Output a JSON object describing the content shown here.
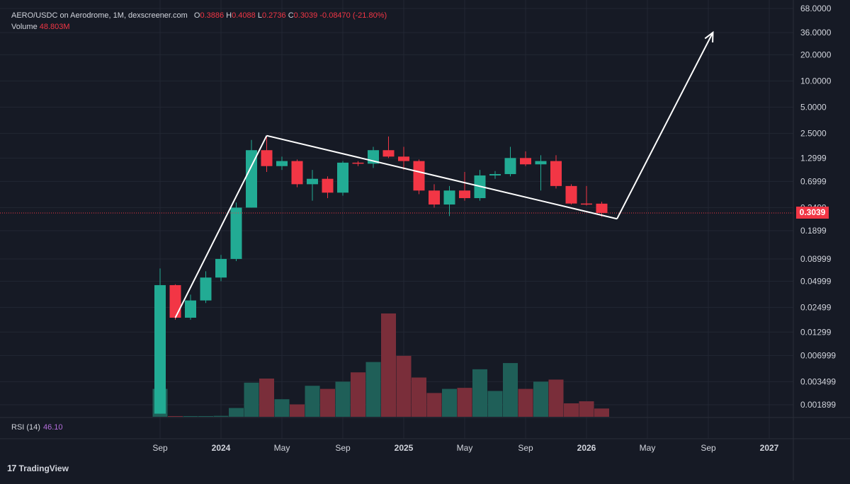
{
  "header": {
    "symbol": "AERO/USDC on Aerodrome, 1M, dexscreener.com",
    "open_label": "O",
    "open": "0.3886",
    "high_label": "H",
    "high": "0.4088",
    "low_label": "L",
    "low": "0.2736",
    "close_label": "C",
    "close": "0.3039",
    "change": "-0.08470 (-21.80%)"
  },
  "volume": {
    "label": "Volume",
    "value": "48.803M"
  },
  "rsi": {
    "label": "RSI (14)",
    "value": "46.10"
  },
  "last_price": "0.3039",
  "footer": {
    "brand": "TradingView",
    "logo": "17"
  },
  "colors": {
    "up": "#22ab94",
    "down": "#f23645",
    "vol_up": "#1f5f58",
    "vol_down": "#7a2e3a",
    "bg": "#161a25",
    "grid": "#222733"
  },
  "chart_data": {
    "type": "candlestick",
    "title": "AERO/USDC on Aerodrome, 1M",
    "yscale": "log",
    "ylim": [
      0.0014,
      68
    ],
    "y_ticks": [
      {
        "label": "68.0000",
        "v": 68
      },
      {
        "label": "36.0000",
        "v": 36
      },
      {
        "label": "20.0000",
        "v": 20
      },
      {
        "label": "10.0000",
        "v": 10
      },
      {
        "label": "5.0000",
        "v": 5
      },
      {
        "label": "2.5000",
        "v": 2.5
      },
      {
        "label": "1.2999",
        "v": 1.2999
      },
      {
        "label": "0.6999",
        "v": 0.6999
      },
      {
        "label": "0.3499",
        "v": 0.3499
      },
      {
        "label": "0.1899",
        "v": 0.1899
      },
      {
        "label": "0.08999",
        "v": 0.08999
      },
      {
        "label": "0.04999",
        "v": 0.04999
      },
      {
        "label": "0.02499",
        "v": 0.02499
      },
      {
        "label": "0.01299",
        "v": 0.01299
      },
      {
        "label": "0.006999",
        "v": 0.006999
      },
      {
        "label": "0.003499",
        "v": 0.003499
      },
      {
        "label": "0.001899",
        "v": 0.001899
      }
    ],
    "x_ticks": [
      {
        "label": "Sep",
        "i": 0
      },
      {
        "label": "2024",
        "i": 4
      },
      {
        "label": "May",
        "i": 8
      },
      {
        "label": "Sep",
        "i": 12
      },
      {
        "label": "2025",
        "i": 16
      },
      {
        "label": "May",
        "i": 20
      },
      {
        "label": "Sep",
        "i": 24
      },
      {
        "label": "2026",
        "i": 28
      },
      {
        "label": "May",
        "i": 32
      },
      {
        "label": "Sep",
        "i": 36
      },
      {
        "label": "2027",
        "i": 40
      }
    ],
    "candles": [
      {
        "period": "2023-09",
        "o": 0.0015,
        "h": 0.07,
        "l": 0.0015,
        "c": 0.045,
        "v": 2.7
      },
      {
        "period": "2023-10",
        "o": 0.045,
        "h": 0.046,
        "l": 0.018,
        "c": 0.019,
        "v": 0.03
      },
      {
        "period": "2023-11",
        "o": 0.019,
        "h": 0.035,
        "l": 0.018,
        "c": 0.03,
        "v": 0.03
      },
      {
        "period": "2023-12",
        "o": 0.03,
        "h": 0.065,
        "l": 0.028,
        "c": 0.055,
        "v": 0.04
      },
      {
        "period": "2024-01",
        "o": 0.055,
        "h": 0.1,
        "l": 0.05,
        "c": 0.09,
        "v": 0.09
      },
      {
        "period": "2024-02",
        "o": 0.09,
        "h": 0.4,
        "l": 0.085,
        "c": 0.35,
        "v": 0.85
      },
      {
        "period": "2024-03",
        "o": 0.35,
        "h": 2.1,
        "l": 0.35,
        "c": 1.6,
        "v": 3.3
      },
      {
        "period": "2024-04",
        "o": 1.6,
        "h": 2.35,
        "l": 0.9,
        "c": 1.05,
        "v": 3.7
      },
      {
        "period": "2024-05",
        "o": 1.05,
        "h": 1.35,
        "l": 0.95,
        "c": 1.2,
        "v": 1.7
      },
      {
        "period": "2024-06",
        "o": 1.2,
        "h": 1.25,
        "l": 0.6,
        "c": 0.65,
        "v": 1.2
      },
      {
        "period": "2024-07",
        "o": 0.65,
        "h": 0.95,
        "l": 0.42,
        "c": 0.75,
        "v": 3.0
      },
      {
        "period": "2024-08",
        "o": 0.75,
        "h": 0.8,
        "l": 0.45,
        "c": 0.52,
        "v": 2.7
      },
      {
        "period": "2024-09",
        "o": 0.52,
        "h": 1.2,
        "l": 0.48,
        "c": 1.15,
        "v": 3.4
      },
      {
        "period": "2024-10",
        "o": 1.15,
        "h": 1.2,
        "l": 1.05,
        "c": 1.12,
        "v": 4.3
      },
      {
        "period": "2024-11",
        "o": 1.12,
        "h": 1.75,
        "l": 1.0,
        "c": 1.6,
        "v": 5.3
      },
      {
        "period": "2024-12",
        "o": 1.6,
        "h": 2.3,
        "l": 1.3,
        "c": 1.35,
        "v": 10.0
      },
      {
        "period": "2025-01",
        "o": 1.35,
        "h": 1.75,
        "l": 0.95,
        "c": 1.2,
        "v": 5.9
      },
      {
        "period": "2025-02",
        "o": 1.2,
        "h": 1.25,
        "l": 0.5,
        "c": 0.55,
        "v": 3.8
      },
      {
        "period": "2025-03",
        "o": 0.55,
        "h": 0.65,
        "l": 0.35,
        "c": 0.38,
        "v": 2.3
      },
      {
        "period": "2025-04",
        "o": 0.38,
        "h": 0.62,
        "l": 0.28,
        "c": 0.55,
        "v": 2.7
      },
      {
        "period": "2025-05",
        "o": 0.55,
        "h": 0.9,
        "l": 0.42,
        "c": 0.45,
        "v": 2.8
      },
      {
        "period": "2025-06",
        "o": 0.45,
        "h": 0.95,
        "l": 0.42,
        "c": 0.82,
        "v": 4.6
      },
      {
        "period": "2025-07",
        "o": 0.82,
        "h": 0.92,
        "l": 0.75,
        "c": 0.85,
        "v": 2.5
      },
      {
        "period": "2025-08",
        "o": 0.85,
        "h": 1.75,
        "l": 0.8,
        "c": 1.3,
        "v": 5.2
      },
      {
        "period": "2025-09",
        "o": 1.3,
        "h": 1.55,
        "l": 1.05,
        "c": 1.1,
        "v": 2.7
      },
      {
        "period": "2025-10",
        "o": 1.1,
        "h": 1.4,
        "l": 0.55,
        "c": 1.2,
        "v": 3.4
      },
      {
        "period": "2025-11",
        "o": 1.2,
        "h": 1.4,
        "l": 0.58,
        "c": 0.62,
        "v": 3.6
      },
      {
        "period": "2025-12",
        "o": 0.62,
        "h": 0.65,
        "l": 0.38,
        "c": 0.39,
        "v": 1.3
      },
      {
        "period": "2026-01",
        "o": 0.39,
        "h": 0.62,
        "l": 0.37,
        "c": 0.38,
        "v": 1.5
      },
      {
        "period": "2026-02",
        "o": 0.3886,
        "h": 0.4088,
        "l": 0.2736,
        "c": 0.3039,
        "v": 0.8
      }
    ],
    "annotations": [
      {
        "type": "trendline",
        "points": [
          [
            1,
            0.019
          ],
          [
            7,
            2.35
          ]
        ]
      },
      {
        "type": "trendline",
        "points": [
          [
            7,
            2.35
          ],
          [
            30,
            0.26
          ]
        ]
      },
      {
        "type": "arrow",
        "points": [
          [
            30,
            0.26
          ],
          [
            36.3,
            36
          ]
        ]
      }
    ],
    "price_line": 0.3039
  }
}
